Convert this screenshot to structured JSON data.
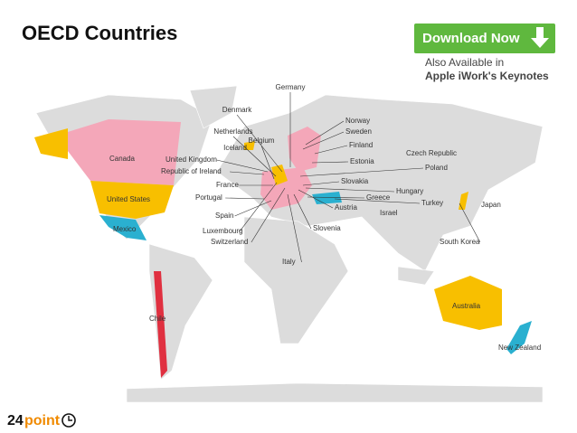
{
  "header": {
    "title": "OECD Countries"
  },
  "promo": {
    "button": "Download Now",
    "line1": "Also Available in",
    "line2": "Apple iWork's Keynotes"
  },
  "map": {
    "labels": [
      "Germany",
      "Denmark",
      "Norway",
      "Netherlands",
      "Sweden",
      "Belgium",
      "Iceland",
      "Finland",
      "Czech Republic",
      "Canada",
      "United Kingdom",
      "Estonia",
      "Poland",
      "Republic of Ireland",
      "Slovakia",
      "France",
      "Hungary",
      "Portugal",
      "Greece",
      "Turkey",
      "Japan",
      "United States",
      "Austria",
      "Israel",
      "Spain",
      "Mexico",
      "Slovenia",
      "Luxembourg",
      "Switzerland",
      "South Korea",
      "Italy",
      "Australia",
      "Chile",
      "New Zealand"
    ]
  },
  "logo": {
    "number": "24",
    "word": "point"
  }
}
